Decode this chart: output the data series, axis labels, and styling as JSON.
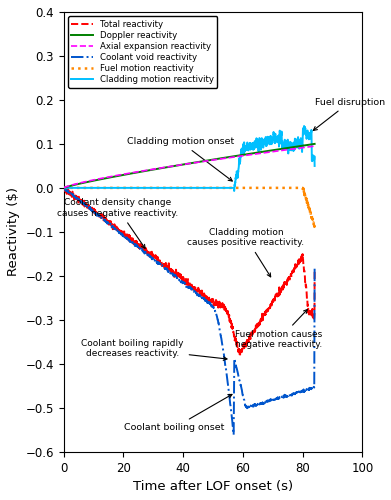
{
  "title": "",
  "xlabel": "Time after LOF onset (s)",
  "ylabel": "Reactivity ($)",
  "xlim": [
    0,
    100
  ],
  "ylim": [
    -0.6,
    0.4
  ],
  "xticks": [
    0,
    20,
    40,
    60,
    80,
    100
  ],
  "yticks": [
    -0.6,
    -0.5,
    -0.4,
    -0.3,
    -0.2,
    -0.1,
    0.0,
    0.1,
    0.2,
    0.3,
    0.4
  ],
  "legend_entries": [
    "Total reactivity",
    "Doppler reactivity",
    "Axial expansion reactivity",
    "Coolant void reactivity",
    "Fuel motion reactivity",
    "Cladding motion reactivity"
  ],
  "bg_color": "#ffffff"
}
